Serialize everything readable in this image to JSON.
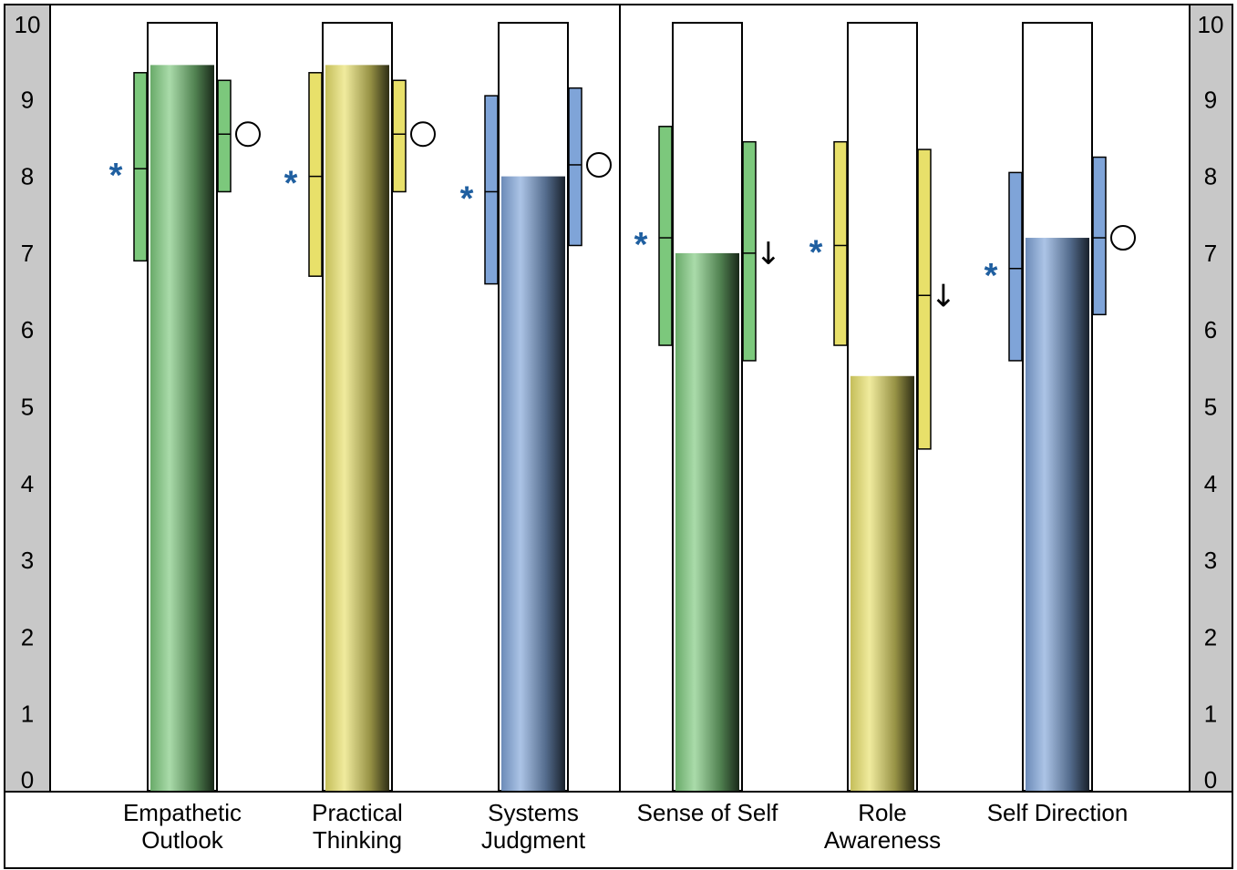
{
  "chart_data": {
    "type": "bar",
    "ylim": [
      0,
      10
    ],
    "yticks": [
      "0",
      "1",
      "2",
      "3",
      "4",
      "5",
      "6",
      "7",
      "8",
      "9",
      "10"
    ],
    "categories": [
      [
        "Empathetic",
        "Outlook"
      ],
      [
        "Practical",
        "Thinking"
      ],
      [
        "Systems",
        "Judgment"
      ],
      [
        "Sense of Self"
      ],
      [
        "Role",
        "Awareness"
      ],
      [
        "Self Direction"
      ]
    ],
    "values": [
      9.45,
      9.45,
      8.0,
      7.0,
      5.4,
      7.2
    ],
    "colors": [
      "#7cc87c",
      "#e8e06a",
      "#7fa4d8",
      "#7cc87c",
      "#e8e06a",
      "#7fa4d8"
    ],
    "ranges_left": [
      {
        "low": 6.9,
        "mid": 8.1,
        "high": 9.35
      },
      {
        "low": 6.7,
        "mid": 8.0,
        "high": 9.35
      },
      {
        "low": 6.6,
        "mid": 7.8,
        "high": 9.05
      },
      {
        "low": 5.8,
        "mid": 7.2,
        "high": 8.65
      },
      {
        "low": 5.8,
        "mid": 7.1,
        "high": 8.45
      },
      {
        "low": 5.6,
        "mid": 6.8,
        "high": 8.05
      }
    ],
    "ranges_right": [
      {
        "low": 7.8,
        "mid": 8.55,
        "high": 9.25
      },
      {
        "low": 7.8,
        "mid": 8.55,
        "high": 9.25
      },
      {
        "low": 7.1,
        "mid": 8.15,
        "high": 9.15
      },
      {
        "low": 5.6,
        "mid": 7.0,
        "high": 8.45
      },
      {
        "low": 4.45,
        "mid": 6.45,
        "high": 8.35
      },
      {
        "low": 6.2,
        "mid": 7.2,
        "high": 8.25
      }
    ],
    "left_markers": [
      "*",
      "*",
      "*",
      "*",
      "*",
      "*"
    ],
    "right_markers": [
      "○",
      "○",
      "○",
      "↓",
      "↓",
      "○"
    ],
    "marker_colors": {
      "star": "#1f5fa0"
    }
  }
}
